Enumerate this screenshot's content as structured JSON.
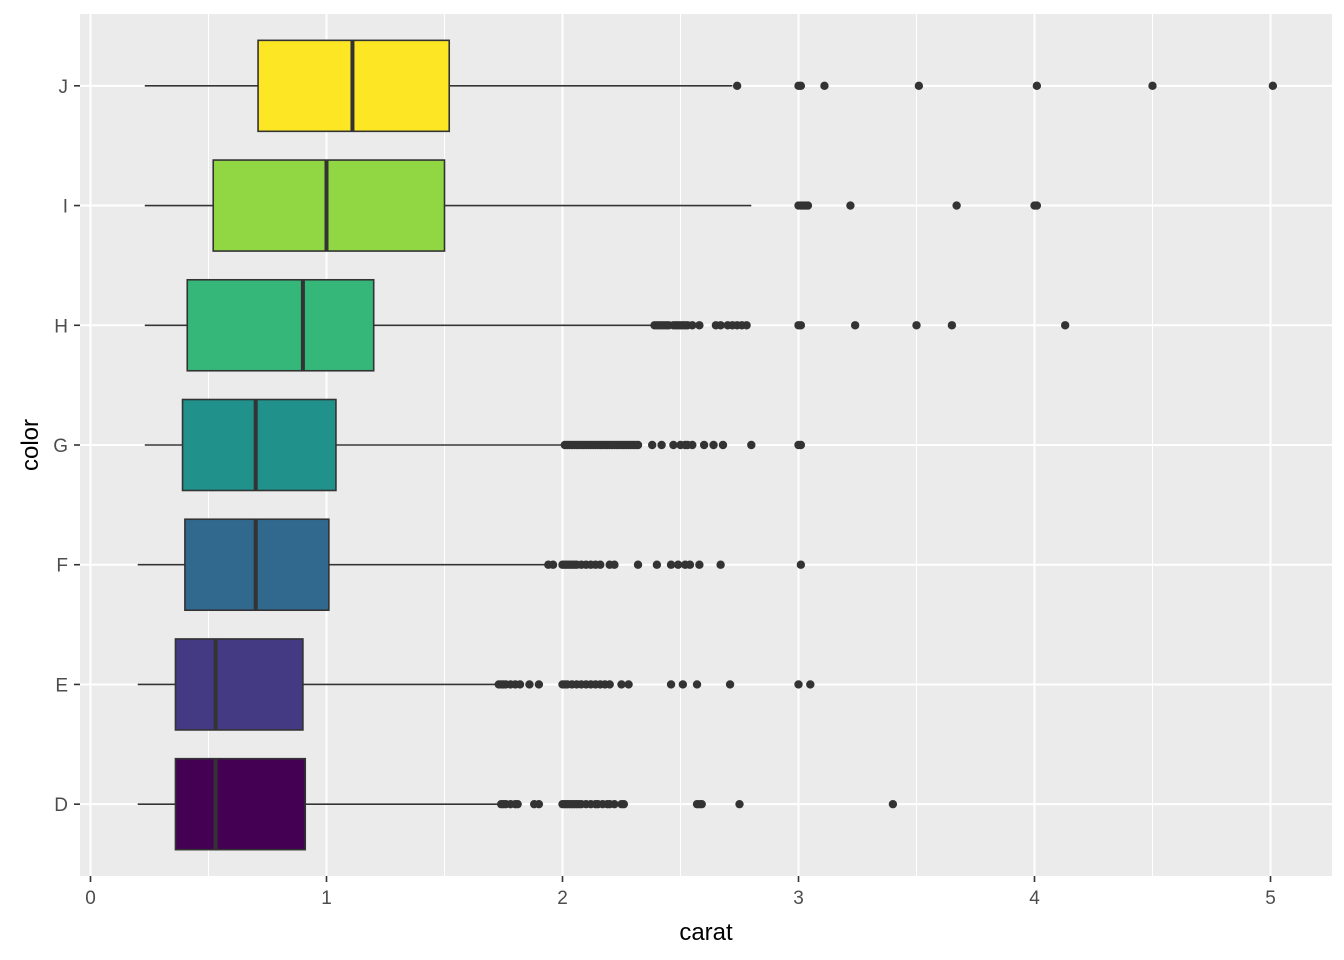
{
  "chart_data": {
    "type": "boxplot",
    "orientation": "horizontal",
    "xlabel": "carat",
    "ylabel": "color",
    "xlim": [
      -0.04,
      5.25
    ],
    "x_ticks": [
      0,
      1,
      2,
      3,
      4,
      5
    ],
    "categories": [
      "D",
      "E",
      "F",
      "G",
      "H",
      "I",
      "J"
    ],
    "panel_background": "#ebebeb",
    "grid": true,
    "grid_color": "#ffffff",
    "box_outline_color": "#333333",
    "legend": "none",
    "boxes": [
      {
        "category": "D",
        "fill": "#440154",
        "whisker_low": 0.2,
        "q1": 0.36,
        "median": 0.53,
        "q3": 0.91,
        "whisker_high": 1.73,
        "outliers": [
          1.74,
          1.75,
          1.76,
          1.78,
          1.8,
          1.81,
          1.88,
          1.9,
          2.0,
          2.01,
          2.02,
          2.03,
          2.04,
          2.05,
          2.06,
          2.07,
          2.08,
          2.1,
          2.12,
          2.14,
          2.15,
          2.17,
          2.19,
          2.2,
          2.22,
          2.25,
          2.26,
          2.57,
          2.58,
          2.59,
          2.75,
          3.4
        ]
      },
      {
        "category": "E",
        "fill": "#443983",
        "whisker_low": 0.2,
        "q1": 0.36,
        "median": 0.53,
        "q3": 0.9,
        "whisker_high": 1.72,
        "outliers": [
          1.73,
          1.74,
          1.75,
          1.76,
          1.78,
          1.8,
          1.82,
          1.86,
          1.9,
          2.0,
          2.01,
          2.02,
          2.04,
          2.06,
          2.08,
          2.1,
          2.12,
          2.14,
          2.16,
          2.18,
          2.2,
          2.25,
          2.28,
          2.46,
          2.51,
          2.57,
          2.71,
          3.0,
          3.05
        ]
      },
      {
        "category": "F",
        "fill": "#31688e",
        "whisker_low": 0.2,
        "q1": 0.4,
        "median": 0.7,
        "q3": 1.01,
        "whisker_high": 1.93,
        "outliers": [
          1.94,
          1.96,
          2.0,
          2.01,
          2.02,
          2.03,
          2.04,
          2.05,
          2.06,
          2.08,
          2.1,
          2.12,
          2.14,
          2.16,
          2.2,
          2.22,
          2.32,
          2.4,
          2.46,
          2.49,
          2.52,
          2.54,
          2.58,
          2.67,
          3.01
        ]
      },
      {
        "category": "G",
        "fill": "#21918c",
        "whisker_low": 0.23,
        "q1": 0.39,
        "median": 0.7,
        "q3": 1.04,
        "whisker_high": 2.0,
        "outliers": [
          2.01,
          2.02,
          2.03,
          2.04,
          2.05,
          2.06,
          2.07,
          2.08,
          2.09,
          2.1,
          2.11,
          2.12,
          2.13,
          2.14,
          2.15,
          2.16,
          2.17,
          2.18,
          2.19,
          2.2,
          2.21,
          2.22,
          2.23,
          2.24,
          2.25,
          2.26,
          2.27,
          2.28,
          2.29,
          2.3,
          2.31,
          2.32,
          2.38,
          2.42,
          2.47,
          2.5,
          2.52,
          2.53,
          2.55,
          2.6,
          2.64,
          2.68,
          2.8,
          3.0,
          3.01
        ]
      },
      {
        "category": "H",
        "fill": "#35b779",
        "whisker_low": 0.23,
        "q1": 0.41,
        "median": 0.9,
        "q3": 1.2,
        "whisker_high": 2.38,
        "outliers": [
          2.39,
          2.4,
          2.41,
          2.42,
          2.43,
          2.44,
          2.45,
          2.47,
          2.48,
          2.49,
          2.5,
          2.51,
          2.52,
          2.53,
          2.55,
          2.58,
          2.65,
          2.67,
          2.7,
          2.72,
          2.74,
          2.76,
          2.78,
          3.0,
          3.01,
          3.24,
          3.5,
          3.65,
          4.13
        ]
      },
      {
        "category": "I",
        "fill": "#90d743",
        "whisker_low": 0.23,
        "q1": 0.52,
        "median": 1.0,
        "q3": 1.5,
        "whisker_high": 2.8,
        "outliers": [
          3.0,
          3.01,
          3.02,
          3.03,
          3.04,
          3.22,
          3.67,
          4.0,
          4.01
        ]
      },
      {
        "category": "J",
        "fill": "#fde725",
        "whisker_low": 0.23,
        "q1": 0.71,
        "median": 1.11,
        "q3": 1.52,
        "whisker_high": 2.72,
        "outliers": [
          2.74,
          3.0,
          3.01,
          3.11,
          3.51,
          4.01,
          4.5,
          5.01
        ]
      }
    ]
  }
}
